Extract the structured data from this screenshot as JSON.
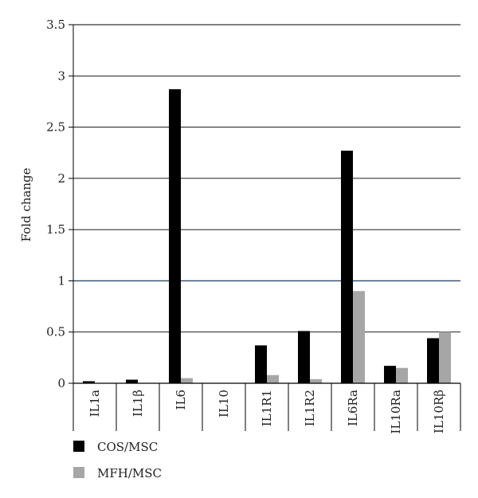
{
  "chart_data": {
    "type": "bar",
    "ylabel": "Fold change",
    "xlabel": "",
    "ylim": [
      0,
      3.5
    ],
    "y_ticks": [
      "0",
      "0.5",
      "1",
      "1.5",
      "2",
      "2.5",
      "3",
      "3.5"
    ],
    "grid": "horizontal",
    "reference_line": 1,
    "legend_position": "bottom-left",
    "categories": [
      "IL1a",
      "IL1β",
      "IL6",
      "IL10",
      "IL1R1",
      "IL1R2",
      "IL6Ra",
      "IL10Ra",
      "IL10Rβ"
    ],
    "series": [
      {
        "name": "COS/MSC",
        "color": "#000000",
        "values": [
          0.02,
          0.035,
          2.87,
          0.0,
          0.37,
          0.51,
          2.27,
          0.17,
          0.44
        ]
      },
      {
        "name": "MFH/MSC",
        "color": "#a6a6a6",
        "values": [
          0.0,
          0.0,
          0.05,
          0.0,
          0.08,
          0.04,
          0.9,
          0.15,
          0.5
        ]
      }
    ],
    "colors": {
      "reference_line": "#2e4a6b",
      "grid": "#000000"
    }
  }
}
